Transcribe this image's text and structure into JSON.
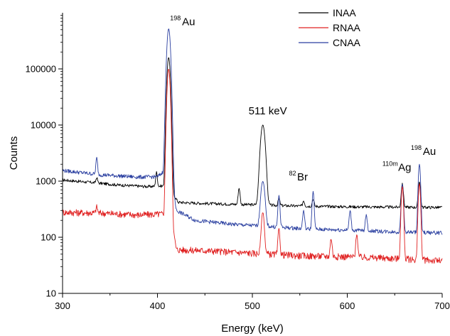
{
  "chart_data": {
    "type": "line",
    "xlabel": "Energy (keV)",
    "ylabel": "Counts",
    "xlim": [
      300,
      700
    ],
    "ylim": [
      10,
      1000000
    ],
    "yscale": "log",
    "x_ticks": [
      300,
      400,
      500,
      600,
      700
    ],
    "x_tick_labels": [
      "300",
      "400",
      "500",
      "600",
      "700"
    ],
    "y_ticks": [
      10,
      100,
      1000,
      10000,
      100000
    ],
    "y_tick_labels": [
      "10",
      "100",
      "1000",
      "10000",
      "100000"
    ],
    "grid": false,
    "legend": {
      "position": "top-right",
      "entries": [
        {
          "name": "INAA",
          "color": "#000000"
        },
        {
          "name": "RNAA",
          "color": "#e02020"
        },
        {
          "name": "CNAA",
          "color": "#2a3fa0"
        }
      ]
    },
    "series": [
      {
        "name": "INAA",
        "color": "#000000",
        "baseline": [
          [
            300,
            1050
          ],
          [
            330,
            950
          ],
          [
            360,
            850
          ],
          [
            390,
            800
          ],
          [
            405,
            820
          ],
          [
            416,
            600
          ],
          [
            422,
            420
          ],
          [
            450,
            400
          ],
          [
            500,
            380
          ],
          [
            550,
            360
          ],
          [
            600,
            350
          ],
          [
            650,
            345
          ],
          [
            700,
            340
          ]
        ],
        "noise": 0.06,
        "peaks": [
          {
            "x": 336,
            "y": 1150,
            "w": 0.8
          },
          {
            "x": 399,
            "y": 1450,
            "w": 0.8
          },
          {
            "x": 411.8,
            "y": 160000,
            "w": 1.4
          },
          {
            "x": 486,
            "y": 750,
            "w": 0.9
          },
          {
            "x": 511,
            "y": 10000,
            "w": 2.0
          },
          {
            "x": 528,
            "y": 480,
            "w": 0.9
          },
          {
            "x": 554,
            "y": 450,
            "w": 0.9
          },
          {
            "x": 564,
            "y": 480,
            "w": 0.9
          },
          {
            "x": 658,
            "y": 900,
            "w": 1.0
          },
          {
            "x": 676,
            "y": 980,
            "w": 1.0
          }
        ]
      },
      {
        "name": "RNAA",
        "color": "#e02020",
        "baseline": [
          [
            300,
            280
          ],
          [
            340,
            270
          ],
          [
            380,
            250
          ],
          [
            405,
            260
          ],
          [
            415,
            180
          ],
          [
            420,
            60
          ],
          [
            450,
            58
          ],
          [
            500,
            52
          ],
          [
            550,
            47
          ],
          [
            600,
            45
          ],
          [
            650,
            42
          ],
          [
            700,
            38
          ]
        ],
        "noise": 0.14,
        "peaks": [
          {
            "x": 336,
            "y": 350,
            "w": 0.8
          },
          {
            "x": 411.8,
            "y": 100000,
            "w": 1.3
          },
          {
            "x": 511,
            "y": 280,
            "w": 1.3
          },
          {
            "x": 528,
            "y": 140,
            "w": 0.9
          },
          {
            "x": 583,
            "y": 95,
            "w": 0.9
          },
          {
            "x": 610,
            "y": 115,
            "w": 0.9
          },
          {
            "x": 658,
            "y": 800,
            "w": 1.0
          },
          {
            "x": 676,
            "y": 900,
            "w": 1.0
          }
        ]
      },
      {
        "name": "CNAA",
        "color": "#2a3fa0",
        "baseline": [
          [
            300,
            1550
          ],
          [
            340,
            1300
          ],
          [
            380,
            1180
          ],
          [
            400,
            1200
          ],
          [
            405,
            1400
          ],
          [
            416,
            800
          ],
          [
            420,
            300
          ],
          [
            440,
            200
          ],
          [
            480,
            170
          ],
          [
            520,
            155
          ],
          [
            560,
            140
          ],
          [
            600,
            135
          ],
          [
            650,
            125
          ],
          [
            700,
            120
          ]
        ],
        "noise": 0.08,
        "peaks": [
          {
            "x": 336,
            "y": 2600,
            "w": 0.8
          },
          {
            "x": 411.8,
            "y": 520000,
            "w": 1.5
          },
          {
            "x": 511,
            "y": 1000,
            "w": 1.8
          },
          {
            "x": 528,
            "y": 550,
            "w": 0.9
          },
          {
            "x": 554,
            "y": 300,
            "w": 0.9
          },
          {
            "x": 564,
            "y": 650,
            "w": 0.9
          },
          {
            "x": 603,
            "y": 300,
            "w": 0.9
          },
          {
            "x": 620,
            "y": 250,
            "w": 0.9
          },
          {
            "x": 658,
            "y": 880,
            "w": 1.0
          },
          {
            "x": 676,
            "y": 2000,
            "w": 1.0
          }
        ]
      }
    ],
    "annotations": [
      {
        "id": "au-198-main",
        "sup": "198",
        "text": "Au",
        "x": 411.8,
        "y": 520000
      },
      {
        "id": "511-kev",
        "sup": "",
        "text": "511 keV",
        "x": 511,
        "y": 10000
      },
      {
        "id": "br-82",
        "sup": "82",
        "text": "Br",
        "x": 564,
        "y": 650
      },
      {
        "id": "ag-110m",
        "sup": "110m",
        "text": "Ag",
        "x": 658,
        "y": 900
      },
      {
        "id": "au-198-small",
        "sup": "198",
        "text": "Au",
        "x": 676,
        "y": 2000
      }
    ]
  }
}
